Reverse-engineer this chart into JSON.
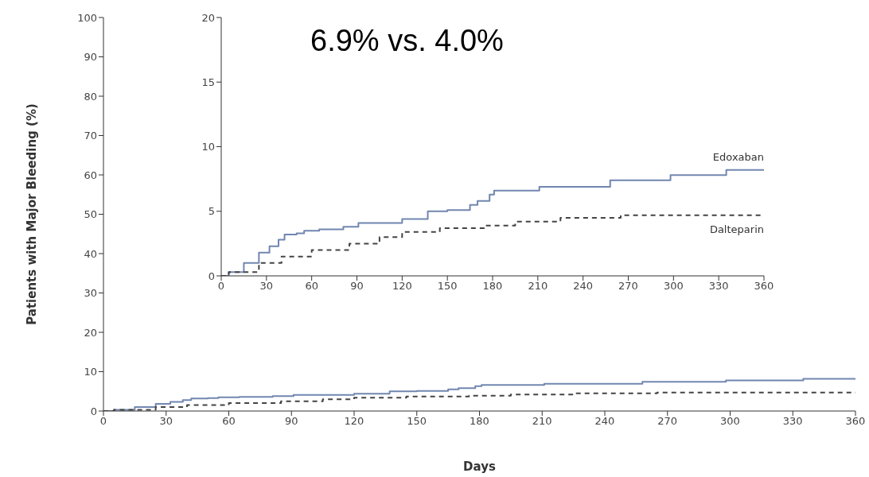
{
  "chart_data": [
    {
      "type": "step",
      "xlabel": "Days",
      "ylabel": "Patients with Major Bleeding (%)",
      "xlim": [
        0,
        360
      ],
      "xticks": [
        0,
        30,
        60,
        90,
        120,
        150,
        180,
        210,
        240,
        270,
        300,
        330,
        360
      ],
      "ylim": [
        0,
        100
      ],
      "yticks": [
        0,
        10,
        20,
        30,
        40,
        50,
        60,
        70,
        80,
        90,
        100
      ],
      "series": [
        {
          "color": "#7186b0",
          "line_style": "solid",
          "x": [
            0,
            5,
            15,
            25,
            32,
            38,
            42,
            50,
            55,
            65,
            81,
            91,
            120,
            137,
            150,
            165,
            170,
            178,
            181,
            211,
            258,
            298,
            335,
            360
          ],
          "values": [
            0,
            0.3,
            1,
            1.8,
            2.3,
            2.8,
            3.2,
            3.3,
            3.5,
            3.6,
            3.8,
            4.1,
            4.4,
            5.0,
            5.1,
            5.5,
            5.8,
            6.3,
            6.6,
            6.9,
            7.4,
            7.8,
            8.2,
            8.2
          ]
        },
        {
          "color": "#444444",
          "line_style": "dashed",
          "x": [
            0,
            5,
            25,
            40,
            60,
            85,
            105,
            120,
            145,
            175,
            195,
            225,
            265,
            360
          ],
          "values": [
            0,
            0.3,
            1,
            1.5,
            2,
            2.5,
            3,
            3.4,
            3.7,
            3.9,
            4.2,
            4.5,
            4.7,
            4.7
          ]
        }
      ]
    },
    {
      "type": "step",
      "xlim": [
        0,
        360
      ],
      "xticks": [
        0,
        30,
        60,
        90,
        120,
        150,
        180,
        210,
        240,
        270,
        300,
        330,
        360
      ],
      "ylim": [
        0,
        20
      ],
      "yticks": [
        0,
        5,
        10,
        15,
        20
      ],
      "annotations": [
        "6.9% vs. 4.0%"
      ],
      "series": [
        {
          "name": "Edoxaban",
          "color": "#7186b0",
          "line_style": "solid",
          "x": [
            0,
            5,
            15,
            25,
            32,
            38,
            42,
            50,
            55,
            65,
            81,
            91,
            120,
            137,
            150,
            165,
            170,
            178,
            181,
            211,
            258,
            298,
            335,
            360
          ],
          "values": [
            0,
            0.3,
            1,
            1.8,
            2.3,
            2.8,
            3.2,
            3.3,
            3.5,
            3.6,
            3.8,
            4.1,
            4.4,
            5.0,
            5.1,
            5.5,
            5.8,
            6.3,
            6.6,
            6.9,
            7.4,
            7.8,
            8.2,
            8.2
          ]
        },
        {
          "name": "Dalteparin",
          "color": "#444444",
          "line_style": "dashed",
          "x": [
            0,
            5,
            25,
            40,
            60,
            85,
            105,
            120,
            145,
            175,
            195,
            225,
            265,
            360
          ],
          "values": [
            0,
            0.3,
            1,
            1.5,
            2,
            2.5,
            3,
            3.4,
            3.7,
            3.9,
            4.2,
            4.5,
            4.7,
            4.7
          ]
        }
      ]
    }
  ]
}
